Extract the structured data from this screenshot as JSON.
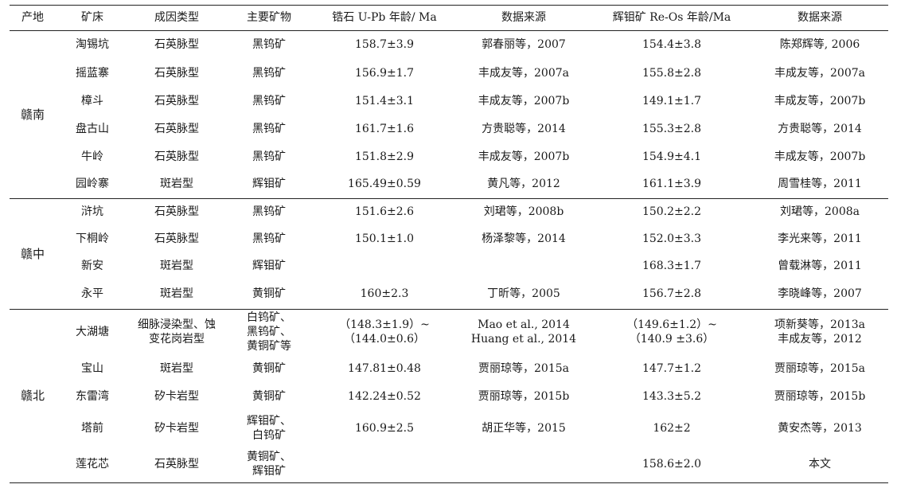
{
  "headers": [
    "产地",
    "矿床",
    "成因类型",
    "主要矿物",
    "锆石 U-Pb 年龄/ Ma",
    "数据来源",
    "辉钼矿 Re-Os 年龄/Ma",
    "数据来源"
  ],
  "groups": [
    {
      "region": "赣南",
      "rows": [
        {
          "deposit": "淘锡坑",
          "type": "石英脉型",
          "mineral": "黑钨矿",
          "upb": "158.7±3.9",
          "upb_src": "郭春丽等，2007",
          "reos": "154.4±3.8",
          "reos_src": "陈郑辉等, 2006"
        },
        {
          "deposit": "摇蓝寨",
          "type": "石英脉型",
          "mineral": "黑钨矿",
          "upb": "156.9±1.7",
          "upb_src": "丰成友等，2007a",
          "reos": "155.8±2.8",
          "reos_src": "丰成友等，2007a"
        },
        {
          "deposit": "樟斗",
          "type": "石英脉型",
          "mineral": "黑钨矿",
          "upb": "151.4±3.1",
          "upb_src": "丰成友等，2007b",
          "reos": "149.1±1.7",
          "reos_src": "丰成友等，2007b"
        },
        {
          "deposit": "盘古山",
          "type": "石英脉型",
          "mineral": "黑钨矿",
          "upb": "161.7±1.6",
          "upb_src": "方贵聪等，2014",
          "reos": "155.3±2.8",
          "reos_src": "方贵聪等，2014"
        },
        {
          "deposit": "牛岭",
          "type": "石英脉型",
          "mineral": "黑钨矿",
          "upb": "151.8±2.9",
          "upb_src": "丰成友等，2007b",
          "reos": "154.9±4.1",
          "reos_src": "丰成友等，2007b"
        },
        {
          "deposit": "园岭寨",
          "type": "斑岩型",
          "mineral": "辉钼矿",
          "upb": "165.49±0.59",
          "upb_src": "黄凡等，2012",
          "reos": "161.1±3.9",
          "reos_src": "周雪桂等，2011"
        }
      ]
    },
    {
      "region": "赣中",
      "rows": [
        {
          "deposit": "浒坑",
          "type": "石英脉型",
          "mineral": "黑钨矿",
          "upb": "151.6±2.6",
          "upb_src": "刘珺等，2008b",
          "reos": "150.2±2.2",
          "reos_src": "刘珺等，2008a"
        },
        {
          "deposit": "下桐岭",
          "type": "石英脉型",
          "mineral": "黑钨矿",
          "upb": "150.1±1.0",
          "upb_src": "杨泽黎等，2014",
          "reos": "152.0±3.3",
          "reos_src": "李光来等，2011"
        },
        {
          "deposit": "新安",
          "type": "斑岩型",
          "mineral": "辉钼矿",
          "upb": "",
          "upb_src": "",
          "reos": "168.3±1.7",
          "reos_src": "曾载淋等，2011"
        },
        {
          "deposit": "永平",
          "type": "斑岩型",
          "mineral": "黄铜矿",
          "upb": "160±2.3",
          "upb_src": "丁昕等，2005",
          "reos": "156.7±2.8",
          "reos_src": "李晓峰等，2007"
        }
      ]
    },
    {
      "region": "赣北",
      "rows": [
        {
          "deposit": "大湖塘",
          "type": [
            "细脉浸染型、蚀",
            "变花岗岩型"
          ],
          "mineral": [
            "白钨矿、",
            "黑钨矿、",
            "黄铜矿等"
          ],
          "upb": [
            "（148.3±1.9）~",
            "（144.0±0.6）"
          ],
          "upb_src": [
            "Mao et al., 2014",
            "Huang et al., 2014"
          ],
          "reos": [
            "（149.6±1.2）~",
            "（140.9 ±3.6）"
          ],
          "reos_src": [
            "项新葵等，2013a",
            "丰成友等，2012"
          ]
        },
        {
          "deposit": "宝山",
          "type": "斑岩型",
          "mineral": "黄铜矿",
          "upb": "147.81±0.48",
          "upb_src": "贾丽琼等，2015a",
          "reos": "147.7±1.2",
          "reos_src": "贾丽琼等，2015a"
        },
        {
          "deposit": "东雷湾",
          "type": "矽卡岩型",
          "mineral": "黄铜矿",
          "upb": "142.24±0.52",
          "upb_src": "贾丽琼等，2015b",
          "reos": "143.3±5.2",
          "reos_src": "贾丽琼等，2015b"
        },
        {
          "deposit": "塔前",
          "type": "矽卡岩型",
          "mineral": [
            "辉钼矿、",
            "白钨矿"
          ],
          "upb": "160.9±2.5",
          "upb_src": "胡正华等，2015",
          "reos": "162±2",
          "reos_src": "黄安杰等，2013"
        },
        {
          "deposit": "莲花芯",
          "type": "石英脉型",
          "mineral": [
            "黄铜矿、",
            "辉钼矿"
          ],
          "upb": "",
          "upb_src": "",
          "reos": "158.6±2.0",
          "reos_src": "本文"
        }
      ]
    }
  ]
}
